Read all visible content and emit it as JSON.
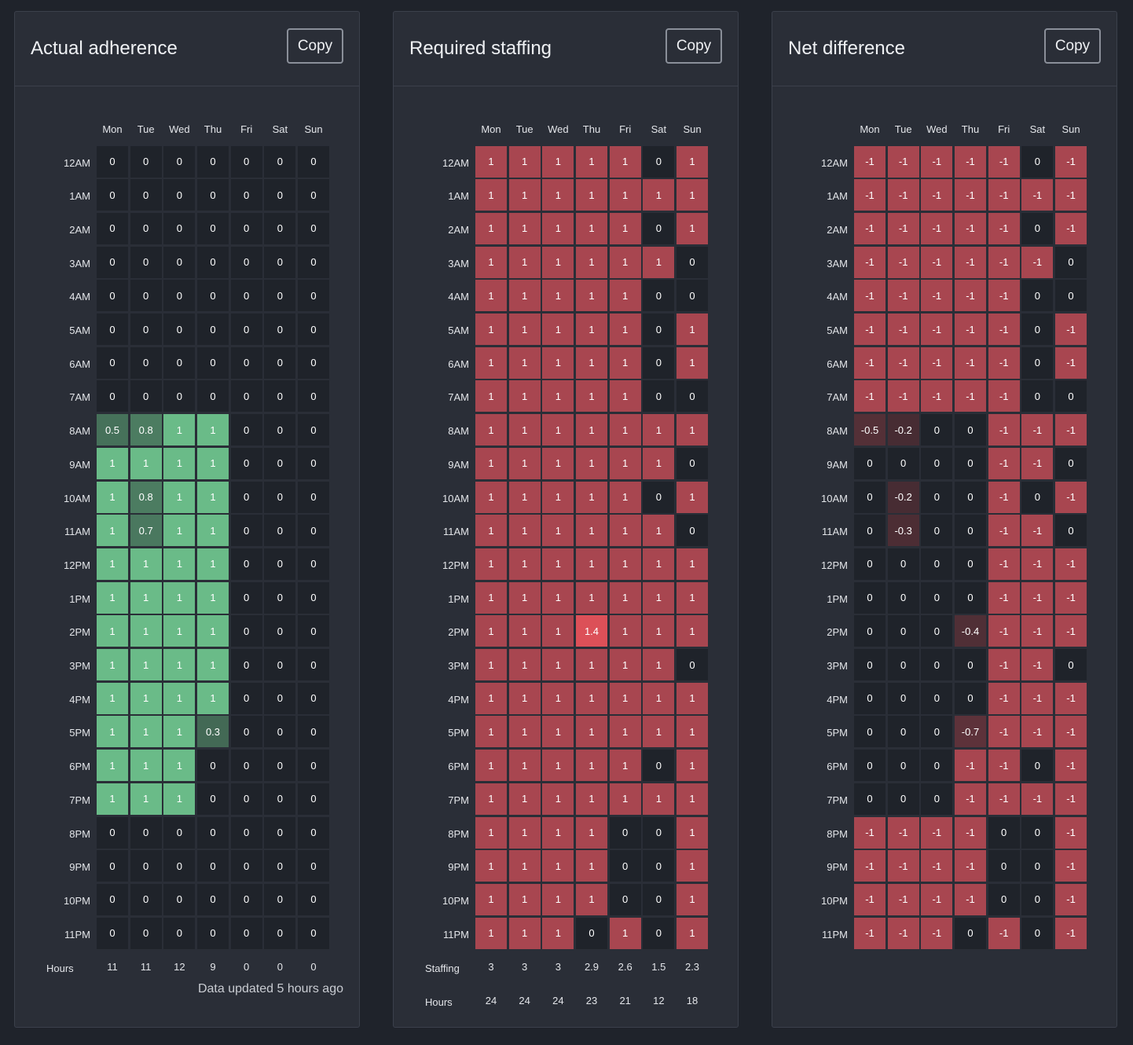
{
  "days": [
    "Mon",
    "Tue",
    "Wed",
    "Thu",
    "Fri",
    "Sat",
    "Sun"
  ],
  "hours": [
    "12AM",
    "1AM",
    "2AM",
    "3AM",
    "4AM",
    "5AM",
    "6AM",
    "7AM",
    "8AM",
    "9AM",
    "10AM",
    "11AM",
    "12PM",
    "1PM",
    "2PM",
    "3PM",
    "4PM",
    "5PM",
    "6PM",
    "7PM",
    "8PM",
    "9PM",
    "10PM",
    "11PM"
  ],
  "colors": {
    "page_bg": "#1f232b",
    "panel_bg": "#2a2e37",
    "zero_cell": "#1f232a",
    "green": "#6abb88",
    "red": "#a84650",
    "red_high": "#dc5058"
  },
  "panels": [
    {
      "title": "Actual adherence",
      "copy_label": "Copy",
      "color": "green",
      "matrix": [
        [
          "0",
          "0",
          "0",
          "0",
          "0",
          "0",
          "0"
        ],
        [
          "0",
          "0",
          "0",
          "0",
          "0",
          "0",
          "0"
        ],
        [
          "0",
          "0",
          "0",
          "0",
          "0",
          "0",
          "0"
        ],
        [
          "0",
          "0",
          "0",
          "0",
          "0",
          "0",
          "0"
        ],
        [
          "0",
          "0",
          "0",
          "0",
          "0",
          "0",
          "0"
        ],
        [
          "0",
          "0",
          "0",
          "0",
          "0",
          "0",
          "0"
        ],
        [
          "0",
          "0",
          "0",
          "0",
          "0",
          "0",
          "0"
        ],
        [
          "0",
          "0",
          "0",
          "0",
          "0",
          "0",
          "0"
        ],
        [
          "0.5",
          "0.8",
          "1",
          "1",
          "0",
          "0",
          "0"
        ],
        [
          "1",
          "1",
          "1",
          "1",
          "0",
          "0",
          "0"
        ],
        [
          "1",
          "0.8",
          "1",
          "1",
          "0",
          "0",
          "0"
        ],
        [
          "1",
          "0.7",
          "1",
          "1",
          "0",
          "0",
          "0"
        ],
        [
          "1",
          "1",
          "1",
          "1",
          "0",
          "0",
          "0"
        ],
        [
          "1",
          "1",
          "1",
          "1",
          "0",
          "0",
          "0"
        ],
        [
          "1",
          "1",
          "1",
          "1",
          "0",
          "0",
          "0"
        ],
        [
          "1",
          "1",
          "1",
          "1",
          "0",
          "0",
          "0"
        ],
        [
          "1",
          "1",
          "1",
          "1",
          "0",
          "0",
          "0"
        ],
        [
          "1",
          "1",
          "1",
          "0.3",
          "0",
          "0",
          "0"
        ],
        [
          "1",
          "1",
          "1",
          "0",
          "0",
          "0",
          "0"
        ],
        [
          "1",
          "1",
          "1",
          "0",
          "0",
          "0",
          "0"
        ],
        [
          "0",
          "0",
          "0",
          "0",
          "0",
          "0",
          "0"
        ],
        [
          "0",
          "0",
          "0",
          "0",
          "0",
          "0",
          "0"
        ],
        [
          "0",
          "0",
          "0",
          "0",
          "0",
          "0",
          "0"
        ],
        [
          "0",
          "0",
          "0",
          "0",
          "0",
          "0",
          "0"
        ]
      ],
      "footer": [
        {
          "label": "Hours",
          "values": [
            "11",
            "11",
            "12",
            "9",
            "0",
            "0",
            "0"
          ]
        }
      ],
      "updated": "Data updated 5 hours ago"
    },
    {
      "title": "Required staffing",
      "copy_label": "Copy",
      "color": "red",
      "matrix": [
        [
          "1",
          "1",
          "1",
          "1",
          "1",
          "0",
          "1"
        ],
        [
          "1",
          "1",
          "1",
          "1",
          "1",
          "1",
          "1"
        ],
        [
          "1",
          "1",
          "1",
          "1",
          "1",
          "0",
          "1"
        ],
        [
          "1",
          "1",
          "1",
          "1",
          "1",
          "1",
          "0"
        ],
        [
          "1",
          "1",
          "1",
          "1",
          "1",
          "0",
          "0"
        ],
        [
          "1",
          "1",
          "1",
          "1",
          "1",
          "0",
          "1"
        ],
        [
          "1",
          "1",
          "1",
          "1",
          "1",
          "0",
          "1"
        ],
        [
          "1",
          "1",
          "1",
          "1",
          "1",
          "0",
          "0"
        ],
        [
          "1",
          "1",
          "1",
          "1",
          "1",
          "1",
          "1"
        ],
        [
          "1",
          "1",
          "1",
          "1",
          "1",
          "1",
          "0"
        ],
        [
          "1",
          "1",
          "1",
          "1",
          "1",
          "0",
          "1"
        ],
        [
          "1",
          "1",
          "1",
          "1",
          "1",
          "1",
          "0"
        ],
        [
          "1",
          "1",
          "1",
          "1",
          "1",
          "1",
          "1"
        ],
        [
          "1",
          "1",
          "1",
          "1",
          "1",
          "1",
          "1"
        ],
        [
          "1",
          "1",
          "1",
          "1.4",
          "1",
          "1",
          "1"
        ],
        [
          "1",
          "1",
          "1",
          "1",
          "1",
          "1",
          "0"
        ],
        [
          "1",
          "1",
          "1",
          "1",
          "1",
          "1",
          "1"
        ],
        [
          "1",
          "1",
          "1",
          "1",
          "1",
          "1",
          "1"
        ],
        [
          "1",
          "1",
          "1",
          "1",
          "1",
          "0",
          "1"
        ],
        [
          "1",
          "1",
          "1",
          "1",
          "1",
          "1",
          "1"
        ],
        [
          "1",
          "1",
          "1",
          "1",
          "0",
          "0",
          "1"
        ],
        [
          "1",
          "1",
          "1",
          "1",
          "0",
          "0",
          "1"
        ],
        [
          "1",
          "1",
          "1",
          "1",
          "0",
          "0",
          "1"
        ],
        [
          "1",
          "1",
          "1",
          "0",
          "1",
          "0",
          "1"
        ]
      ],
      "footer": [
        {
          "label": "Staffing",
          "values": [
            "3",
            "3",
            "3",
            "2.9",
            "2.6",
            "1.5",
            "2.3"
          ]
        },
        {
          "label": "Hours",
          "values": [
            "24",
            "24",
            "24",
            "23",
            "21",
            "12",
            "18"
          ]
        }
      ],
      "updated": ""
    },
    {
      "title": "Net difference",
      "copy_label": "Copy",
      "color": "red",
      "matrix": [
        [
          "-1",
          "-1",
          "-1",
          "-1",
          "-1",
          "0",
          "-1"
        ],
        [
          "-1",
          "-1",
          "-1",
          "-1",
          "-1",
          "-1",
          "-1"
        ],
        [
          "-1",
          "-1",
          "-1",
          "-1",
          "-1",
          "0",
          "-1"
        ],
        [
          "-1",
          "-1",
          "-1",
          "-1",
          "-1",
          "-1",
          "0"
        ],
        [
          "-1",
          "-1",
          "-1",
          "-1",
          "-1",
          "0",
          "0"
        ],
        [
          "-1",
          "-1",
          "-1",
          "-1",
          "-1",
          "0",
          "-1"
        ],
        [
          "-1",
          "-1",
          "-1",
          "-1",
          "-1",
          "0",
          "-1"
        ],
        [
          "-1",
          "-1",
          "-1",
          "-1",
          "-1",
          "0",
          "0"
        ],
        [
          "-0.5",
          "-0.2",
          "0",
          "0",
          "-1",
          "-1",
          "-1"
        ],
        [
          "0",
          "0",
          "0",
          "0",
          "-1",
          "-1",
          "0"
        ],
        [
          "0",
          "-0.2",
          "0",
          "0",
          "-1",
          "0",
          "-1"
        ],
        [
          "0",
          "-0.3",
          "0",
          "0",
          "-1",
          "-1",
          "0"
        ],
        [
          "0",
          "0",
          "0",
          "0",
          "-1",
          "-1",
          "-1"
        ],
        [
          "0",
          "0",
          "0",
          "0",
          "-1",
          "-1",
          "-1"
        ],
        [
          "0",
          "0",
          "0",
          "-0.4",
          "-1",
          "-1",
          "-1"
        ],
        [
          "0",
          "0",
          "0",
          "0",
          "-1",
          "-1",
          "0"
        ],
        [
          "0",
          "0",
          "0",
          "0",
          "-1",
          "-1",
          "-1"
        ],
        [
          "0",
          "0",
          "0",
          "-0.7",
          "-1",
          "-1",
          "-1"
        ],
        [
          "0",
          "0",
          "0",
          "-1",
          "-1",
          "0",
          "-1"
        ],
        [
          "0",
          "0",
          "0",
          "-1",
          "-1",
          "-1",
          "-1"
        ],
        [
          "-1",
          "-1",
          "-1",
          "-1",
          "0",
          "0",
          "-1"
        ],
        [
          "-1",
          "-1",
          "-1",
          "-1",
          "0",
          "0",
          "-1"
        ],
        [
          "-1",
          "-1",
          "-1",
          "-1",
          "0",
          "0",
          "-1"
        ],
        [
          "-1",
          "-1",
          "-1",
          "0",
          "-1",
          "0",
          "-1"
        ]
      ],
      "footer": [],
      "updated": ""
    }
  ]
}
